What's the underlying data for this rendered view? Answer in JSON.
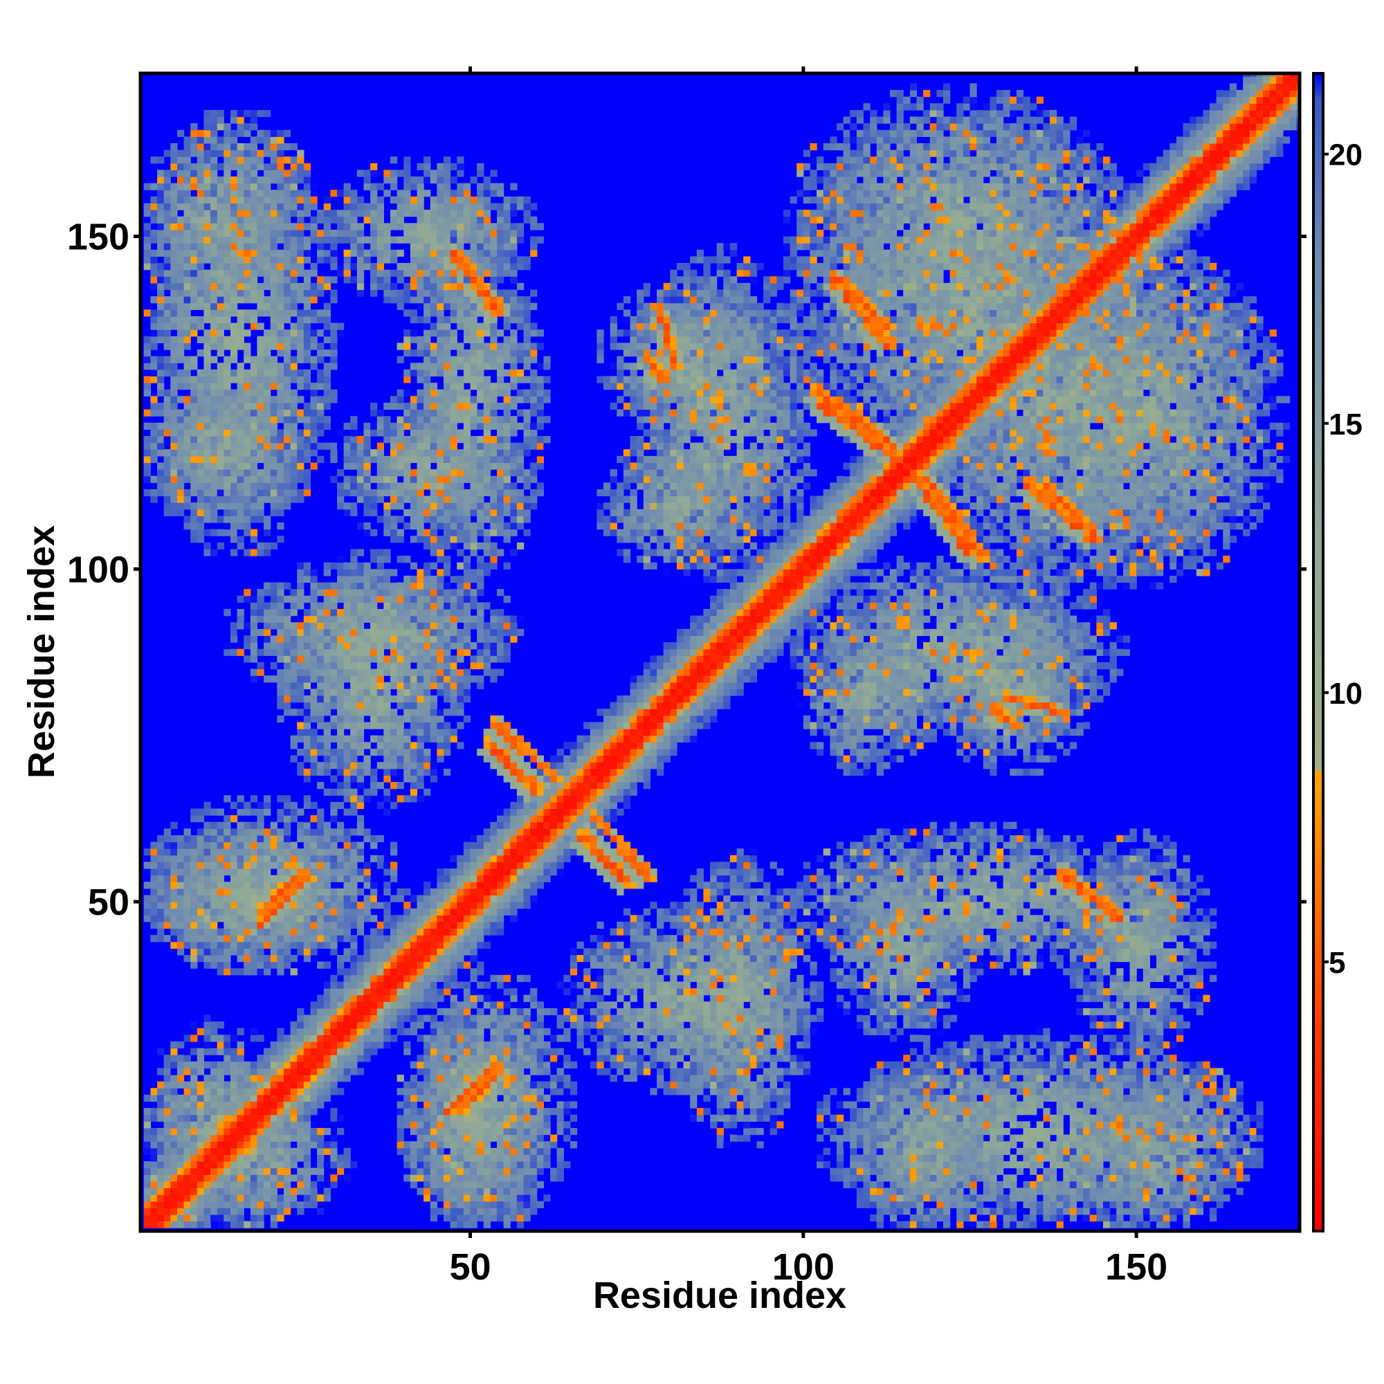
{
  "chart_data": {
    "type": "heatmap",
    "title": "",
    "xlabel": "Residue index",
    "ylabel": "Residue index",
    "n_residues": 174,
    "xlim": [
      1,
      174
    ],
    "ylim": [
      1,
      174
    ],
    "x_ticks": [
      50,
      100,
      150
    ],
    "y_ticks": [
      50,
      100,
      150
    ],
    "colorbar": {
      "range": [
        0,
        21.5
      ],
      "ticks": [
        5,
        10,
        15,
        20
      ],
      "stops": [
        {
          "value": 0,
          "color": "#ff0000"
        },
        {
          "value": 4,
          "color": "#ff4000"
        },
        {
          "value": 8.5,
          "color": "#ffa500"
        },
        {
          "value": 8.6,
          "color": "#9fae8a"
        },
        {
          "value": 13,
          "color": "#8fa898"
        },
        {
          "value": 18,
          "color": "#6f8bb0"
        },
        {
          "value": 21,
          "color": "#3a58c8"
        },
        {
          "value": 21.5,
          "color": "#0000ff"
        }
      ],
      "cutoff_color": "#0000ff"
    },
    "contact_regions": [
      {
        "x": [
          1,
          24
        ],
        "y": [
          140,
          165
        ],
        "level": "contact"
      },
      {
        "x": [
          1,
          24
        ],
        "y": [
          106,
          128
        ],
        "level": "contact"
      },
      {
        "x": [
          28,
          58
        ],
        "y": [
          140,
          160
        ],
        "level": "contact"
      },
      {
        "x": [
          30,
          56
        ],
        "y": [
          104,
          125
        ],
        "level": "contact"
      },
      {
        "x": [
          15,
          55
        ],
        "y": [
          80,
          100
        ],
        "level": "contact"
      },
      {
        "x": [
          1,
          38
        ],
        "y": [
          40,
          64
        ],
        "level": "contact"
      },
      {
        "x": [
          1,
          30
        ],
        "y": [
          1,
          22
        ],
        "level": "contact"
      },
      {
        "x": [
          40,
          60
        ],
        "y": [
          1,
          30
        ],
        "level": "contact"
      },
      {
        "x": [
          70,
          95
        ],
        "y": [
          120,
          142
        ],
        "level": "contact"
      },
      {
        "x": [
          70,
          92
        ],
        "y": [
          100,
          118
        ],
        "level": "contact"
      },
      {
        "x": [
          100,
          150
        ],
        "y": [
          115,
          165
        ],
        "level": "contact"
      },
      {
        "x": [
          133,
          170
        ],
        "y": [
          100,
          145
        ],
        "level": "contact"
      },
      {
        "x": [
          100,
          145
        ],
        "y": [
          75,
          100
        ],
        "level": "contact"
      },
      {
        "x": [
          65,
          100
        ],
        "y": [
          22,
          48
        ],
        "level": "contact"
      },
      {
        "x": [
          100,
          150
        ],
        "y": [
          40,
          60
        ],
        "level": "contact"
      },
      {
        "x": [
          105,
          165
        ],
        "y": [
          1,
          28
        ],
        "level": "contact"
      }
    ],
    "close_contacts": [
      {
        "from": [
          47,
          147
        ],
        "to": [
          53,
          138
        ]
      },
      {
        "from": [
          106,
          140
        ],
        "to": [
          112,
          133
        ]
      },
      {
        "from": [
          102,
          124
        ],
        "to": [
          115,
          115
        ]
      },
      {
        "from": [
          118,
          113
        ],
        "to": [
          126,
          101
        ]
      },
      {
        "from": [
          136,
          112
        ],
        "to": [
          143,
          104
        ]
      },
      {
        "from": [
          52,
          73
        ],
        "to": [
          59,
          66
        ]
      },
      {
        "from": [
          68,
          62
        ],
        "to": [
          76,
          53
        ]
      },
      {
        "from": [
          138,
          54
        ],
        "to": [
          146,
          47
        ]
      },
      {
        "from": [
          130,
          80
        ],
        "to": [
          138,
          78
        ]
      },
      {
        "from": [
          46,
          18
        ],
        "to": [
          53,
          25
        ]
      },
      {
        "from": [
          18,
          48
        ],
        "to": [
          24,
          54
        ]
      },
      {
        "from": [
          76,
          131
        ],
        "to": [
          78,
          128
        ]
      }
    ]
  }
}
